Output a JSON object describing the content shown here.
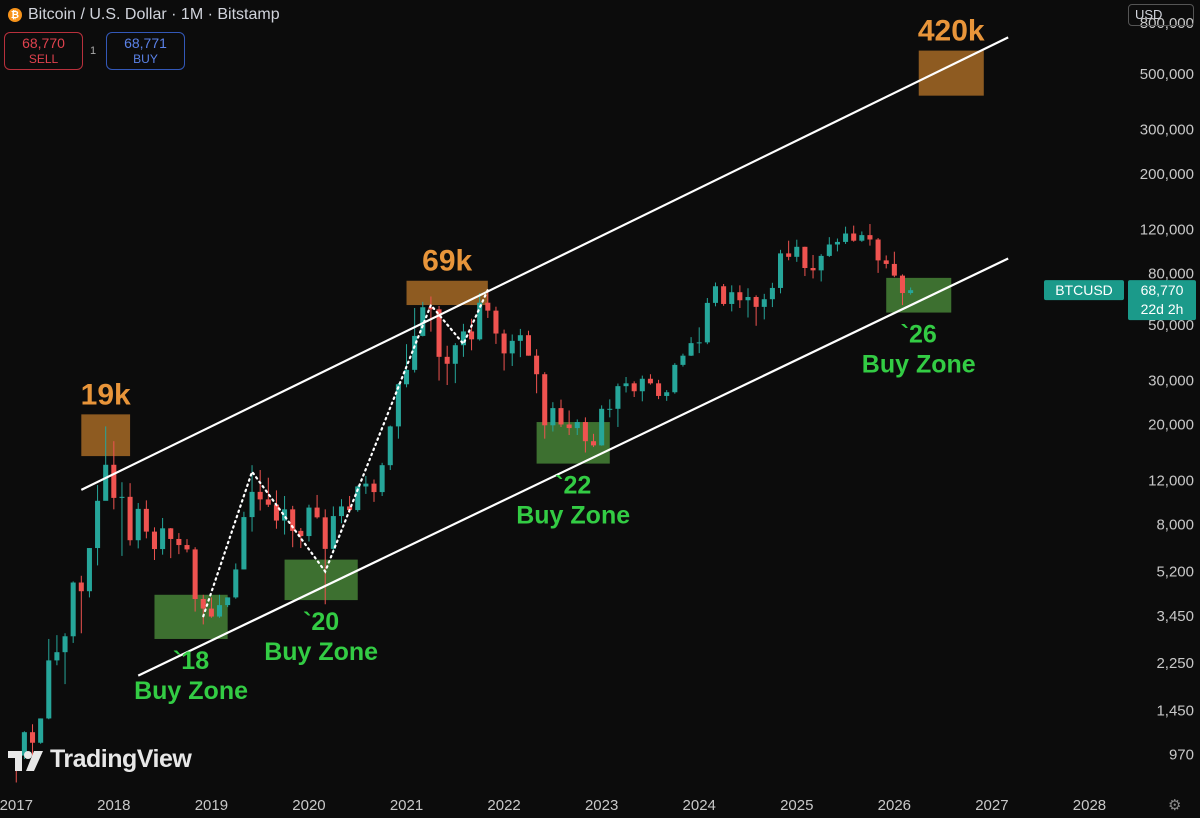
{
  "header": {
    "title": "Bitcoin / U.S. Dollar · 1M · Bitstamp",
    "icon": "bitcoin-icon"
  },
  "trade": {
    "sell_price": "68,770",
    "sell_label": "SELL",
    "qty": "1",
    "buy_price": "68,771",
    "buy_label": "BUY"
  },
  "currency": "USD",
  "brand": "TradingView",
  "price_tag": {
    "symbol": "BTCUSD",
    "price": "68,770",
    "countdown": "22d 2h"
  },
  "colors": {
    "bg": "#0c0c0c",
    "up": "#26a69a",
    "down": "#ef5350",
    "peak": "#e8953a",
    "buy": "#33cc44",
    "zone_green": "#4a8a3a",
    "zone_orange": "#c07a2a",
    "channel": "#ffffff"
  },
  "chart_data": {
    "type": "candlestick",
    "yscale": "log",
    "ylim": [
      700,
      900000
    ],
    "xlim": [
      "2016-11",
      "2028-05"
    ],
    "y_ticks": [
      {
        "v": 800000,
        "label": "800,000"
      },
      {
        "v": 500000,
        "label": "500,000"
      },
      {
        "v": 300000,
        "label": "300,000"
      },
      {
        "v": 200000,
        "label": "200,000"
      },
      {
        "v": 120000,
        "label": "120,000"
      },
      {
        "v": 80000,
        "label": "80,000"
      },
      {
        "v": 50000,
        "label": "50,000"
      },
      {
        "v": 30000,
        "label": "30,000"
      },
      {
        "v": 20000,
        "label": "20,000"
      },
      {
        "v": 12000,
        "label": "12,000"
      },
      {
        "v": 8000,
        "label": "8,000"
      },
      {
        "v": 5200,
        "label": "5,200"
      },
      {
        "v": 3450,
        "label": "3,450"
      },
      {
        "v": 2250,
        "label": "2,250"
      },
      {
        "v": 1450,
        "label": "1,450"
      },
      {
        "v": 970,
        "label": "970"
      }
    ],
    "x_ticks": [
      "2017",
      "2018",
      "2019",
      "2020",
      "2021",
      "2022",
      "2023",
      "2024",
      "2025",
      "2026",
      "2027",
      "2028"
    ],
    "candles": [
      [
        "2017-01",
        970,
        1000,
        750,
        960
      ],
      [
        "2017-02",
        960,
        1200,
        930,
        1190
      ],
      [
        "2017-03",
        1190,
        1280,
        890,
        1080
      ],
      [
        "2017-04",
        1080,
        1350,
        1070,
        1350
      ],
      [
        "2017-05",
        1350,
        2800,
        1340,
        2300
      ],
      [
        "2017-06",
        2300,
        2900,
        2200,
        2480
      ],
      [
        "2017-07",
        2480,
        2950,
        1850,
        2870
      ],
      [
        "2017-08",
        2870,
        4750,
        2700,
        4700
      ],
      [
        "2017-09",
        4700,
        5000,
        2950,
        4340
      ],
      [
        "2017-10",
        4340,
        6450,
        4100,
        6450
      ],
      [
        "2017-11",
        6450,
        11500,
        5500,
        9950
      ],
      [
        "2017-12",
        9950,
        19700,
        10800,
        13850
      ],
      [
        "2018-01",
        13850,
        17200,
        9200,
        10220
      ],
      [
        "2018-02",
        10220,
        11800,
        6000,
        10320
      ],
      [
        "2018-03",
        10320,
        11700,
        6600,
        6930
      ],
      [
        "2018-04",
        6930,
        9750,
        6430,
        9240
      ],
      [
        "2018-05",
        9240,
        9990,
        7050,
        7500
      ],
      [
        "2018-06",
        7500,
        7800,
        5780,
        6390
      ],
      [
        "2018-07",
        6390,
        8500,
        6070,
        7730
      ],
      [
        "2018-08",
        7730,
        7750,
        5880,
        7010
      ],
      [
        "2018-09",
        7010,
        7400,
        6100,
        6630
      ],
      [
        "2018-10",
        6630,
        7000,
        6200,
        6370
      ],
      [
        "2018-11",
        6370,
        6500,
        3600,
        4040
      ],
      [
        "2018-12",
        4040,
        4200,
        3200,
        3700
      ],
      [
        "2019-01",
        3700,
        4100,
        3400,
        3440
      ],
      [
        "2019-02",
        3440,
        4200,
        3400,
        3820
      ],
      [
        "2019-03",
        3820,
        4100,
        3750,
        4100
      ],
      [
        "2019-04",
        4100,
        5600,
        4050,
        5300
      ],
      [
        "2019-05",
        5300,
        9000,
        5300,
        8570
      ],
      [
        "2019-06",
        8570,
        13800,
        7500,
        10800
      ],
      [
        "2019-07",
        10800,
        13200,
        9100,
        10080
      ],
      [
        "2019-08",
        10080,
        12300,
        9400,
        9600
      ],
      [
        "2019-09",
        9600,
        10950,
        7700,
        8300
      ],
      [
        "2019-10",
        8300,
        10400,
        7300,
        9200
      ],
      [
        "2019-11",
        9200,
        9500,
        6500,
        7550
      ],
      [
        "2019-12",
        7550,
        7750,
        6450,
        7200
      ],
      [
        "2020-01",
        7200,
        9600,
        6850,
        9350
      ],
      [
        "2020-02",
        9350,
        10500,
        8450,
        8550
      ],
      [
        "2020-03",
        8550,
        9200,
        3850,
        6400
      ],
      [
        "2020-04",
        6400,
        9450,
        6150,
        8650
      ],
      [
        "2020-05",
        8650,
        10100,
        8100,
        9450
      ],
      [
        "2020-06",
        9450,
        10400,
        8900,
        9140
      ],
      [
        "2020-07",
        9140,
        11450,
        9000,
        11350
      ],
      [
        "2020-08",
        11350,
        12500,
        10600,
        11650
      ],
      [
        "2020-09",
        11650,
        12100,
        9850,
        10780
      ],
      [
        "2020-10",
        10780,
        14100,
        10400,
        13800
      ],
      [
        "2020-11",
        13800,
        19850,
        13200,
        19700
      ],
      [
        "2020-12",
        19700,
        29300,
        17600,
        29000
      ],
      [
        "2021-01",
        29000,
        41900,
        28200,
        33100
      ],
      [
        "2021-02",
        33100,
        58400,
        32300,
        45200
      ],
      [
        "2021-03",
        45200,
        61800,
        45000,
        58800
      ],
      [
        "2021-04",
        58800,
        64900,
        47000,
        57700
      ],
      [
        "2021-05",
        57700,
        59500,
        30000,
        37300
      ],
      [
        "2021-06",
        37300,
        41300,
        28800,
        35000
      ],
      [
        "2021-07",
        35000,
        42300,
        29300,
        41500
      ],
      [
        "2021-08",
        41500,
        50500,
        37300,
        47100
      ],
      [
        "2021-09",
        47100,
        52900,
        39600,
        43800
      ],
      [
        "2021-10",
        43800,
        66900,
        43300,
        61300
      ],
      [
        "2021-11",
        61300,
        69000,
        53300,
        57000
      ],
      [
        "2021-12",
        57000,
        59100,
        42000,
        46200
      ],
      [
        "2022-01",
        46200,
        47900,
        32900,
        38500
      ],
      [
        "2022-02",
        38500,
        45800,
        34300,
        43200
      ],
      [
        "2022-03",
        43200,
        48200,
        37200,
        45500
      ],
      [
        "2022-04",
        45500,
        47400,
        37700,
        37700
      ],
      [
        "2022-05",
        37700,
        40000,
        26700,
        31800
      ],
      [
        "2022-06",
        31800,
        32400,
        17600,
        19900
      ],
      [
        "2022-07",
        19900,
        24600,
        18800,
        23300
      ],
      [
        "2022-08",
        23300,
        25200,
        19600,
        20050
      ],
      [
        "2022-09",
        20050,
        22800,
        18200,
        19400
      ],
      [
        "2022-10",
        19400,
        21000,
        18200,
        20500
      ],
      [
        "2022-11",
        20500,
        21400,
        15500,
        17200
      ],
      [
        "2022-12",
        17200,
        18400,
        16300,
        16550
      ],
      [
        "2023-01",
        16550,
        23900,
        16500,
        23150
      ],
      [
        "2023-02",
        23150,
        25250,
        21400,
        23150
      ],
      [
        "2023-03",
        23150,
        29200,
        19600,
        28500
      ],
      [
        "2023-04",
        28500,
        31000,
        26900,
        29250
      ],
      [
        "2023-05",
        29250,
        29800,
        25800,
        27200
      ],
      [
        "2023-06",
        27200,
        31400,
        24800,
        30500
      ],
      [
        "2023-07",
        30500,
        31800,
        28900,
        29250
      ],
      [
        "2023-08",
        29250,
        30200,
        25300,
        26050
      ],
      [
        "2023-09",
        26050,
        27500,
        24900,
        26950
      ],
      [
        "2023-10",
        26950,
        35200,
        26600,
        34650
      ],
      [
        "2023-11",
        34650,
        38400,
        34100,
        37700
      ],
      [
        "2023-12",
        37700,
        44700,
        37600,
        42300
      ],
      [
        "2024-01",
        42300,
        48900,
        38600,
        42600
      ],
      [
        "2024-02",
        42600,
        64000,
        41900,
        61200
      ],
      [
        "2024-03",
        61200,
        73800,
        59300,
        71300
      ],
      [
        "2024-04",
        71300,
        72800,
        59600,
        60600
      ],
      [
        "2024-05",
        60600,
        71900,
        56600,
        67500
      ],
      [
        "2024-06",
        67500,
        71900,
        58400,
        62700
      ],
      [
        "2024-07",
        62700,
        70000,
        53500,
        64600
      ],
      [
        "2024-08",
        64600,
        65600,
        49600,
        59000
      ],
      [
        "2024-09",
        59000,
        66500,
        52600,
        63300
      ],
      [
        "2024-10",
        63300,
        73600,
        58900,
        70200
      ],
      [
        "2024-11",
        70200,
        99600,
        66800,
        96400
      ],
      [
        "2024-12",
        96400,
        108300,
        90500,
        93400
      ],
      [
        "2025-01",
        93400,
        109300,
        89200,
        102400
      ],
      [
        "2025-02",
        102400,
        102500,
        78300,
        84300
      ],
      [
        "2025-03",
        84300,
        95000,
        76600,
        82500
      ],
      [
        "2025-04",
        82500,
        95700,
        74500,
        94200
      ],
      [
        "2025-05",
        94200,
        111900,
        93300,
        104600
      ],
      [
        "2025-06",
        104600,
        110500,
        98200,
        107100
      ],
      [
        "2025-07",
        107100,
        123200,
        105100,
        115700
      ],
      [
        "2025-08",
        115700,
        124400,
        107300,
        108300
      ],
      [
        "2025-09",
        108300,
        117900,
        107200,
        114000
      ],
      [
        "2025-10",
        114000,
        126200,
        103500,
        109500
      ],
      [
        "2025-11",
        109500,
        111000,
        80600,
        90400
      ],
      [
        "2025-12",
        90400,
        94600,
        84000,
        87500
      ],
      [
        "2026-01",
        87500,
        97900,
        77500,
        78600
      ],
      [
        "2026-02",
        78600,
        79500,
        60000,
        67000
      ],
      [
        "2026-03",
        67000,
        70500,
        66000,
        68770
      ]
    ],
    "channel": {
      "upper": [
        [
          "2017-09",
          11000
        ],
        [
          "2027-03",
          700000
        ]
      ],
      "lower": [
        [
          "2018-04",
          2000
        ],
        [
          "2027-03",
          92000
        ]
      ]
    },
    "zones": [
      {
        "kind": "peak",
        "x": [
          "2017-09",
          "2018-03"
        ],
        "y": [
          15000,
          22000
        ],
        "label": "19k"
      },
      {
        "kind": "peak",
        "x": [
          "2021-01",
          "2021-11"
        ],
        "y": [
          60000,
          75000
        ],
        "label": "69k"
      },
      {
        "kind": "peak",
        "x": [
          "2026-04",
          "2026-12"
        ],
        "y": [
          410000,
          620000
        ],
        "label": "420k"
      },
      {
        "kind": "buy",
        "x": [
          "2018-06",
          "2019-03"
        ],
        "y": [
          2800,
          4200
        ],
        "year": "`18",
        "label": "Buy Zone"
      },
      {
        "kind": "buy",
        "x": [
          "2019-10",
          "2020-07"
        ],
        "y": [
          4000,
          5800
        ],
        "year": "`20",
        "label": "Buy Zone"
      },
      {
        "kind": "buy",
        "x": [
          "2022-05",
          "2023-02"
        ],
        "y": [
          14000,
          20500
        ],
        "year": "`22",
        "label": "Buy Zone"
      },
      {
        "kind": "buy",
        "x": [
          "2025-12",
          "2026-08"
        ],
        "y": [
          56000,
          77000
        ],
        "year": "`26",
        "label": "Buy Zone"
      }
    ],
    "dotted_path": [
      [
        "2018-12",
        3450
      ],
      [
        "2019-06",
        13000
      ],
      [
        "2020-03",
        5200
      ],
      [
        "2021-04",
        60000
      ],
      [
        "2021-08",
        42000
      ],
      [
        "2021-11",
        69000
      ]
    ]
  }
}
